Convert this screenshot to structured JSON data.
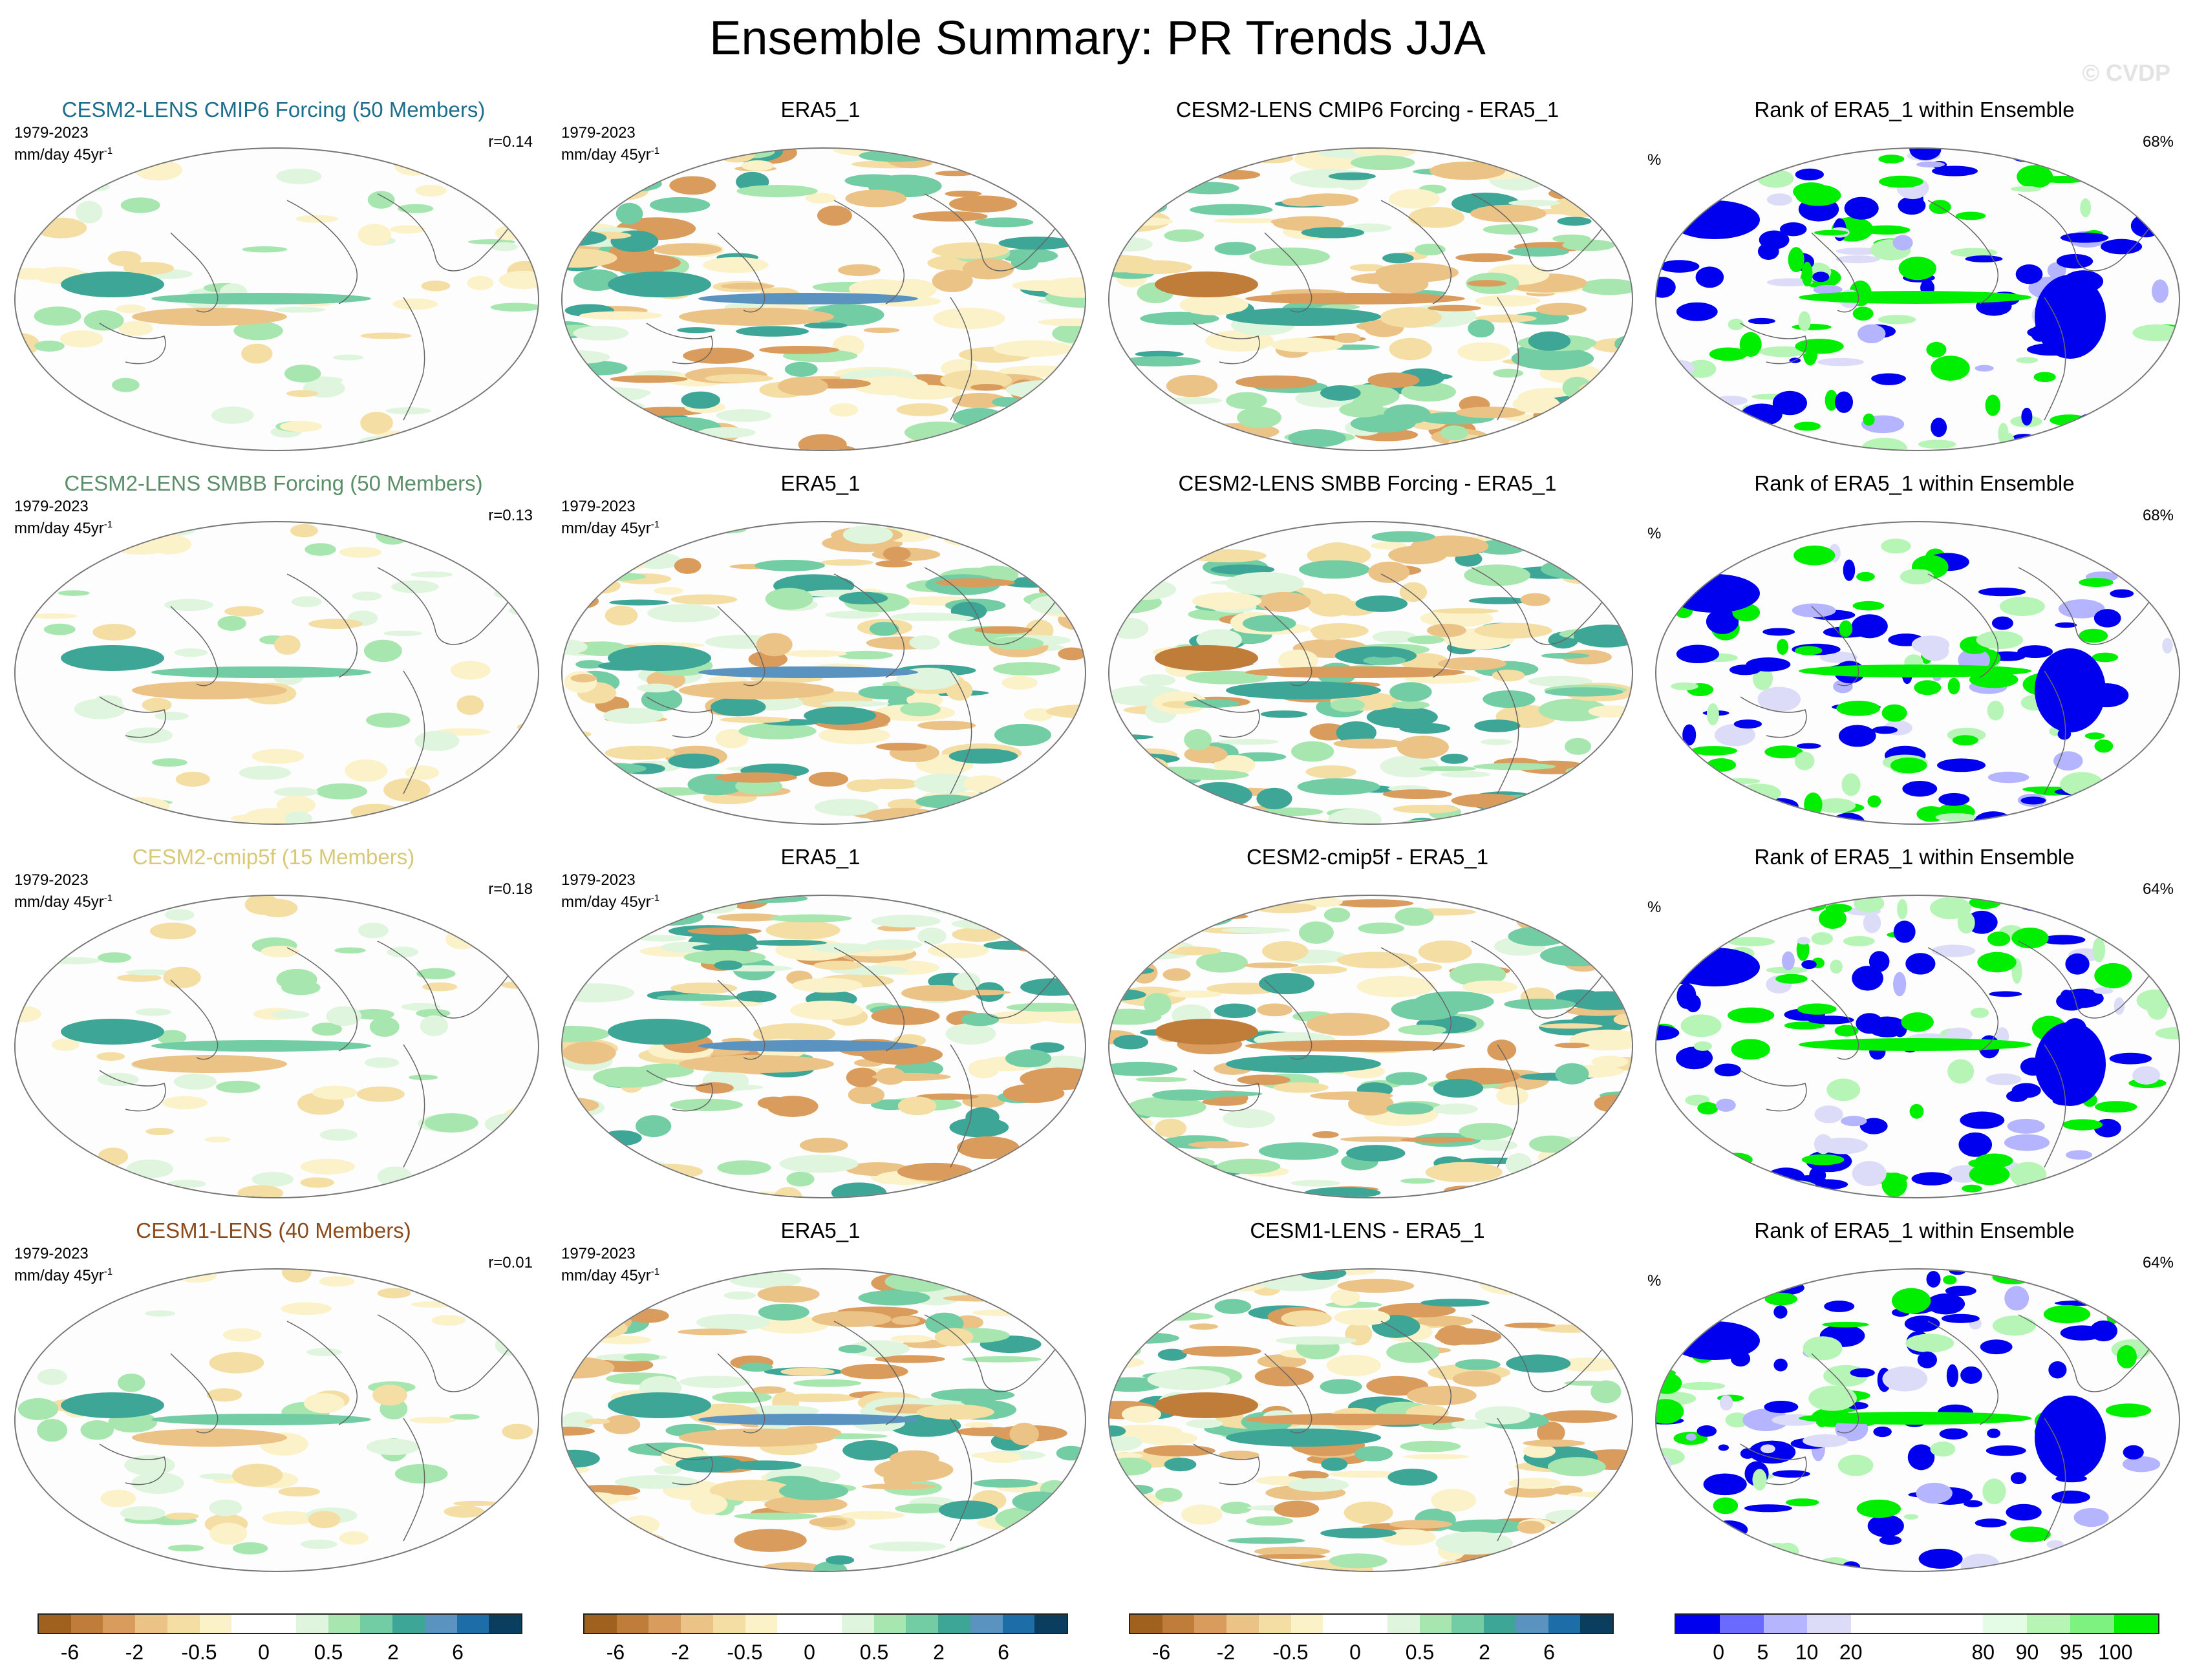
{
  "title": "Ensemble Summary: PR Trends JJA",
  "watermark": "© CVDP",
  "rows": [
    {
      "ens": {
        "title": "CESM2-LENS CMIP6 Forcing (50 Members)",
        "color": "#1c6e8c",
        "period": "1979-2023",
        "units": "mm/day 45yr",
        "units_sup": "-1",
        "corr": "r=0.14"
      },
      "obs": {
        "title": "ERA5_1",
        "period": "1979-2023",
        "units": "mm/day 45yr",
        "units_sup": "-1"
      },
      "diff": {
        "title": "CESM2-LENS CMIP6 Forcing - ERA5_1"
      },
      "rank": {
        "title": "Rank of ERA5_1 within Ensemble",
        "pct_symbol": "%",
        "pct": "68%"
      }
    },
    {
      "ens": {
        "title": "CESM2-LENS SMBB Forcing (50 Members)",
        "color": "#5a8f6a",
        "period": "1979-2023",
        "units": "mm/day 45yr",
        "units_sup": "-1",
        "corr": "r=0.13"
      },
      "obs": {
        "title": "ERA5_1",
        "period": "1979-2023",
        "units": "mm/day 45yr",
        "units_sup": "-1"
      },
      "diff": {
        "title": "CESM2-LENS SMBB Forcing - ERA5_1"
      },
      "rank": {
        "title": "Rank of ERA5_1 within Ensemble",
        "pct_symbol": "%",
        "pct": "68%"
      }
    },
    {
      "ens": {
        "title": "CESM2-cmip5f (15 Members)",
        "color": "#d8c878",
        "period": "1979-2023",
        "units": "mm/day 45yr",
        "units_sup": "-1",
        "corr": "r=0.18"
      },
      "obs": {
        "title": "ERA5_1",
        "period": "1979-2023",
        "units": "mm/day 45yr",
        "units_sup": "-1"
      },
      "diff": {
        "title": "CESM2-cmip5f - ERA5_1"
      },
      "rank": {
        "title": "Rank of ERA5_1 within Ensemble",
        "pct_symbol": "%",
        "pct": "64%"
      }
    },
    {
      "ens": {
        "title": "CESM1-LENS (40 Members)",
        "color": "#8a4a1c",
        "period": "1979-2023",
        "units": "mm/day 45yr",
        "units_sup": "-1",
        "corr": "r=0.01"
      },
      "obs": {
        "title": "ERA5_1",
        "period": "1979-2023",
        "units": "mm/day 45yr",
        "units_sup": "-1"
      },
      "diff": {
        "title": "CESM1-LENS - ERA5_1"
      },
      "rank": {
        "title": "Rank of ERA5_1 within Ensemble",
        "pct_symbol": "%",
        "pct": "64%"
      }
    }
  ],
  "colorbars": {
    "trend": {
      "colors": [
        "#a0611e",
        "#c07d3a",
        "#d99c5c",
        "#ecc387",
        "#f5dea4",
        "#fbf2c9",
        "#ffffff",
        "#ffffff",
        "#dff5de",
        "#a8e6b0",
        "#72cca4",
        "#3ea696",
        "#5b93c0",
        "#1d6ea8",
        "#0b3d5e"
      ],
      "ticks": [
        "-6",
        "-2",
        "-0.5",
        "0",
        "0.5",
        "2",
        "6"
      ],
      "tick_boundaries": [
        1,
        3,
        5,
        7,
        9,
        11,
        13
      ]
    },
    "rank": {
      "colors": [
        "#0000ee",
        "#6a6aff",
        "#b4b4ff",
        "#dcdcf8",
        "#ffffff",
        "#ffffff",
        "#ffffff",
        "#e4fbe4",
        "#b6f5b6",
        "#7ef27e",
        "#00ee00"
      ],
      "ticks": [
        "0",
        "5",
        "10",
        "20",
        "80",
        "90",
        "95",
        "100"
      ],
      "tick_boundaries": [
        1,
        2,
        3,
        4,
        7,
        8,
        9,
        10
      ]
    }
  },
  "chart_data": {
    "type": "heatmap",
    "title": "Ensemble Summary: PR Trends JJA",
    "projection": "Robinson (global)",
    "variable": "Precipitation trend",
    "period": "1979-2023",
    "units": "mm/day 45yr-1",
    "trend_levels": [
      -6,
      -2,
      -0.5,
      0,
      0.5,
      2,
      6
    ],
    "rank_levels": [
      0,
      5,
      10,
      20,
      80,
      90,
      95,
      100
    ],
    "panels": [
      {
        "row": 1,
        "column": "ensemble_mean",
        "name": "CESM2-LENS CMIP6 Forcing (50 Members)",
        "pattern_correlation": 0.14
      },
      {
        "row": 1,
        "column": "observations",
        "name": "ERA5_1"
      },
      {
        "row": 1,
        "column": "difference",
        "name": "CESM2-LENS CMIP6 Forcing - ERA5_1"
      },
      {
        "row": 1,
        "column": "rank",
        "name": "Rank of ERA5_1 within Ensemble",
        "percent_within_10_90": 68
      },
      {
        "row": 2,
        "column": "ensemble_mean",
        "name": "CESM2-LENS SMBB Forcing (50 Members)",
        "pattern_correlation": 0.13
      },
      {
        "row": 2,
        "column": "observations",
        "name": "ERA5_1"
      },
      {
        "row": 2,
        "column": "difference",
        "name": "CESM2-LENS SMBB Forcing - ERA5_1"
      },
      {
        "row": 2,
        "column": "rank",
        "name": "Rank of ERA5_1 within Ensemble",
        "percent_within_10_90": 68
      },
      {
        "row": 3,
        "column": "ensemble_mean",
        "name": "CESM2-cmip5f (15 Members)",
        "pattern_correlation": 0.18
      },
      {
        "row": 3,
        "column": "observations",
        "name": "ERA5_1"
      },
      {
        "row": 3,
        "column": "difference",
        "name": "CESM2-cmip5f - ERA5_1"
      },
      {
        "row": 3,
        "column": "rank",
        "name": "Rank of ERA5_1 within Ensemble",
        "percent_within_10_90": 64
      },
      {
        "row": 4,
        "column": "ensemble_mean",
        "name": "CESM1-LENS (40 Members)",
        "pattern_correlation": 0.01
      },
      {
        "row": 4,
        "column": "observations",
        "name": "ERA5_1"
      },
      {
        "row": 4,
        "column": "difference",
        "name": "CESM1-LENS - ERA5_1"
      },
      {
        "row": 4,
        "column": "rank",
        "name": "Rank of ERA5_1 within Ensemble",
        "percent_within_10_90": 64
      }
    ]
  }
}
